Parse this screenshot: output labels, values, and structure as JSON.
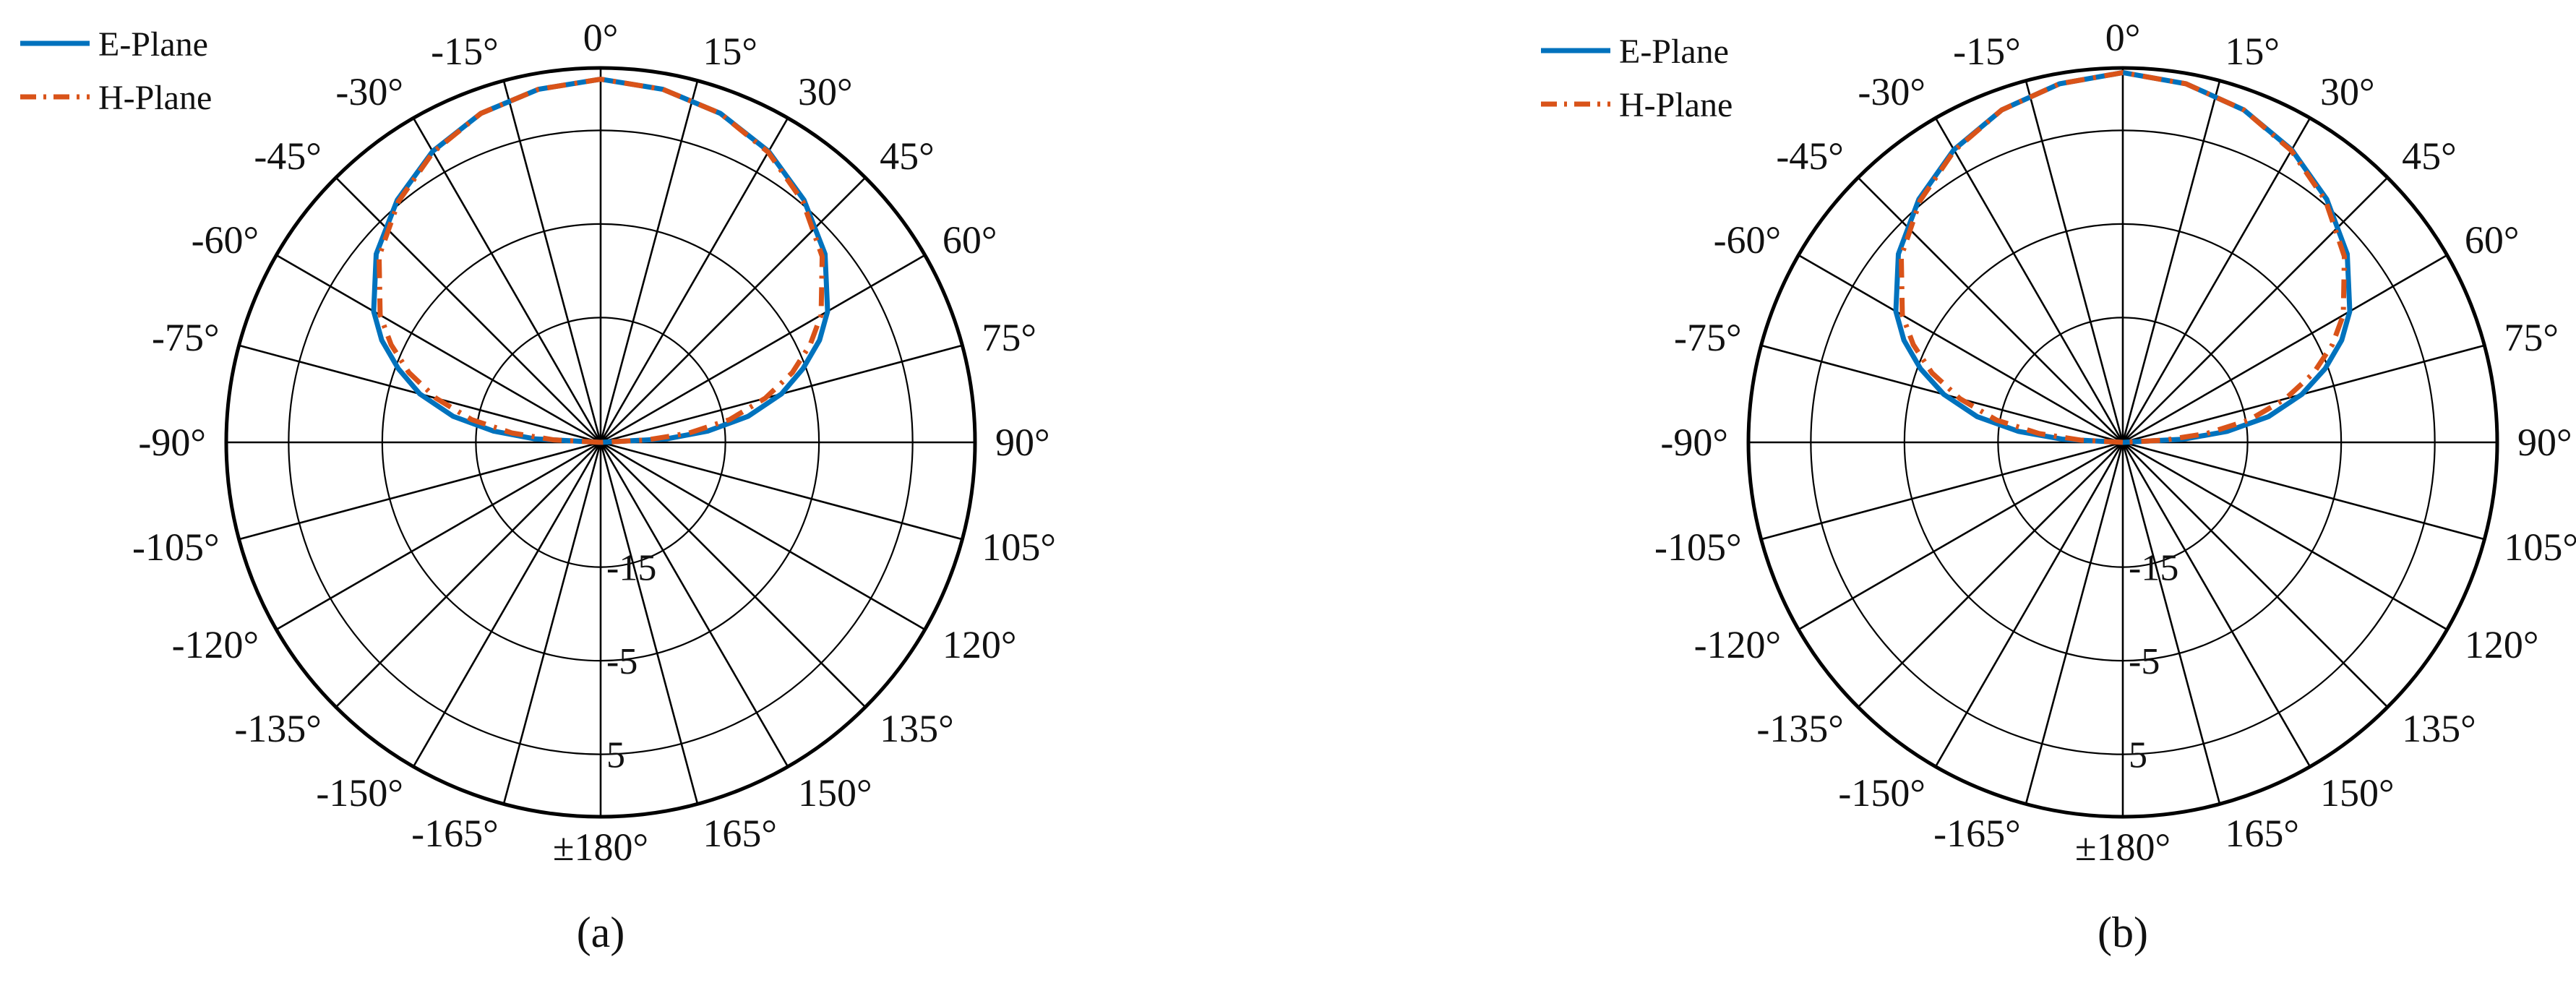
{
  "figure": {
    "panels": [
      "a",
      "b"
    ]
  },
  "chart_data": [
    {
      "panel": "a",
      "caption": "(a)",
      "type": "polar-line",
      "theta_ticks": [
        "0°",
        "15°",
        "30°",
        "45°",
        "60°",
        "75°",
        "90°",
        "105°",
        "120°",
        "135°",
        "150°",
        "165°",
        "±180°",
        "-165°",
        "-150°",
        "-135°",
        "-120°",
        "-105°",
        "-90°",
        "-75°",
        "-60°",
        "-45°",
        "-30°",
        "-15°"
      ],
      "rtick_labels": [
        "-15",
        "-5",
        "5"
      ],
      "rlim": [
        -25,
        15
      ],
      "theta_zero": "top",
      "theta_direction": "clockwise",
      "grid": true,
      "legend_position": "top-left",
      "series": [
        {
          "name": "E-Plane",
          "color": "#0072BD",
          "style": "solid",
          "points": [
            {
              "theta": -90,
              "r": -25
            },
            {
              "theta": -87,
              "r": -18
            },
            {
              "theta": -84,
              "r": -13.5
            },
            {
              "theta": -80,
              "r": -9
            },
            {
              "theta": -75,
              "r": -5
            },
            {
              "theta": -70,
              "r": -2
            },
            {
              "theta": -65,
              "r": 0.8
            },
            {
              "theta": -60,
              "r": 3
            },
            {
              "theta": -50,
              "r": 6.3
            },
            {
              "theta": -40,
              "r": 8.8
            },
            {
              "theta": -30,
              "r": 10.9
            },
            {
              "theta": -20,
              "r": 12.4
            },
            {
              "theta": -10,
              "r": 13.3
            },
            {
              "theta": 0,
              "r": 13.8
            },
            {
              "theta": 10,
              "r": 13.3
            },
            {
              "theta": 20,
              "r": 12.4
            },
            {
              "theta": 30,
              "r": 10.9
            },
            {
              "theta": 40,
              "r": 8.8
            },
            {
              "theta": 50,
              "r": 6.3
            },
            {
              "theta": 60,
              "r": 3
            },
            {
              "theta": 65,
              "r": 0.8
            },
            {
              "theta": 70,
              "r": -2
            },
            {
              "theta": 75,
              "r": -5
            },
            {
              "theta": 80,
              "r": -9
            },
            {
              "theta": 84,
              "r": -13.5
            },
            {
              "theta": 87,
              "r": -18
            },
            {
              "theta": 90,
              "r": -25
            }
          ]
        },
        {
          "name": "H-Plane",
          "color": "#D95319",
          "style": "dashdot",
          "points": [
            {
              "theta": -90,
              "r": -25
            },
            {
              "theta": -87,
              "r": -20
            },
            {
              "theta": -84,
              "r": -15.5
            },
            {
              "theta": -80,
              "r": -11
            },
            {
              "theta": -75,
              "r": -6.8
            },
            {
              "theta": -70,
              "r": -3.2
            },
            {
              "theta": -65,
              "r": -0.3
            },
            {
              "theta": -60,
              "r": 2.2
            },
            {
              "theta": -50,
              "r": 5.9
            },
            {
              "theta": -40,
              "r": 8.6
            },
            {
              "theta": -30,
              "r": 10.8
            },
            {
              "theta": -20,
              "r": 12.4
            },
            {
              "theta": -10,
              "r": 13.3
            },
            {
              "theta": 0,
              "r": 13.8
            },
            {
              "theta": 10,
              "r": 13.3
            },
            {
              "theta": 20,
              "r": 12.4
            },
            {
              "theta": 30,
              "r": 10.8
            },
            {
              "theta": 40,
              "r": 8.6
            },
            {
              "theta": 50,
              "r": 5.9
            },
            {
              "theta": 60,
              "r": 2.2
            },
            {
              "theta": 65,
              "r": -0.3
            },
            {
              "theta": 70,
              "r": -3.2
            },
            {
              "theta": 75,
              "r": -6.8
            },
            {
              "theta": 80,
              "r": -11
            },
            {
              "theta": 84,
              "r": -15.5
            },
            {
              "theta": 87,
              "r": -20
            },
            {
              "theta": 90,
              "r": -25
            }
          ]
        }
      ]
    },
    {
      "panel": "b",
      "caption": "(b)",
      "type": "polar-line",
      "theta_ticks": [
        "0°",
        "15°",
        "30°",
        "45°",
        "60°",
        "75°",
        "90°",
        "105°",
        "120°",
        "135°",
        "150°",
        "165°",
        "±180°",
        "-165°",
        "-150°",
        "-135°",
        "-120°",
        "-105°",
        "-90°",
        "-75°",
        "-60°",
        "-45°",
        "-30°",
        "-15°"
      ],
      "rtick_labels": [
        "-15",
        "-5",
        "5"
      ],
      "rlim": [
        -25,
        15
      ],
      "theta_zero": "top",
      "theta_direction": "clockwise",
      "grid": true,
      "legend_position": "top-left",
      "series": [
        {
          "name": "E-Plane",
          "color": "#0072BD",
          "style": "solid",
          "points": [
            {
              "theta": -90,
              "r": -25
            },
            {
              "theta": -87,
              "r": -18.5
            },
            {
              "theta": -84,
              "r": -13.8
            },
            {
              "theta": -80,
              "r": -9.2
            },
            {
              "theta": -75,
              "r": -5.2
            },
            {
              "theta": -70,
              "r": -2
            },
            {
              "theta": -65,
              "r": 0.8
            },
            {
              "theta": -60,
              "r": 3
            },
            {
              "theta": -50,
              "r": 6.3
            },
            {
              "theta": -40,
              "r": 8.9
            },
            {
              "theta": -30,
              "r": 11.1
            },
            {
              "theta": -20,
              "r": 12.8
            },
            {
              "theta": -10,
              "r": 13.9
            },
            {
              "theta": 0,
              "r": 14.5
            },
            {
              "theta": 10,
              "r": 13.9
            },
            {
              "theta": 20,
              "r": 12.8
            },
            {
              "theta": 30,
              "r": 11.1
            },
            {
              "theta": 40,
              "r": 8.9
            },
            {
              "theta": 50,
              "r": 6.3
            },
            {
              "theta": 60,
              "r": 3
            },
            {
              "theta": 65,
              "r": 0.8
            },
            {
              "theta": 70,
              "r": -2
            },
            {
              "theta": 75,
              "r": -5.2
            },
            {
              "theta": 80,
              "r": -9.2
            },
            {
              "theta": 84,
              "r": -13.8
            },
            {
              "theta": 87,
              "r": -18.5
            },
            {
              "theta": 90,
              "r": -25
            }
          ]
        },
        {
          "name": "H-Plane",
          "color": "#D95319",
          "style": "dashdot",
          "points": [
            {
              "theta": -90,
              "r": -25
            },
            {
              "theta": -87,
              "r": -20.5
            },
            {
              "theta": -84,
              "r": -16
            },
            {
              "theta": -80,
              "r": -11.3
            },
            {
              "theta": -75,
              "r": -7
            },
            {
              "theta": -70,
              "r": -3.3
            },
            {
              "theta": -65,
              "r": -0.3
            },
            {
              "theta": -60,
              "r": 2.2
            },
            {
              "theta": -50,
              "r": 5.9
            },
            {
              "theta": -40,
              "r": 8.7
            },
            {
              "theta": -30,
              "r": 11
            },
            {
              "theta": -20,
              "r": 12.8
            },
            {
              "theta": -10,
              "r": 13.9
            },
            {
              "theta": 0,
              "r": 14.5
            },
            {
              "theta": 10,
              "r": 13.9
            },
            {
              "theta": 20,
              "r": 12.8
            },
            {
              "theta": 30,
              "r": 11
            },
            {
              "theta": 40,
              "r": 8.7
            },
            {
              "theta": 50,
              "r": 5.9
            },
            {
              "theta": 60,
              "r": 2.2
            },
            {
              "theta": 65,
              "r": -0.3
            },
            {
              "theta": 70,
              "r": -3.3
            },
            {
              "theta": 75,
              "r": -7
            },
            {
              "theta": 80,
              "r": -11.3
            },
            {
              "theta": 84,
              "r": -16
            },
            {
              "theta": 87,
              "r": -20.5
            },
            {
              "theta": 90,
              "r": -25
            }
          ]
        }
      ]
    }
  ]
}
